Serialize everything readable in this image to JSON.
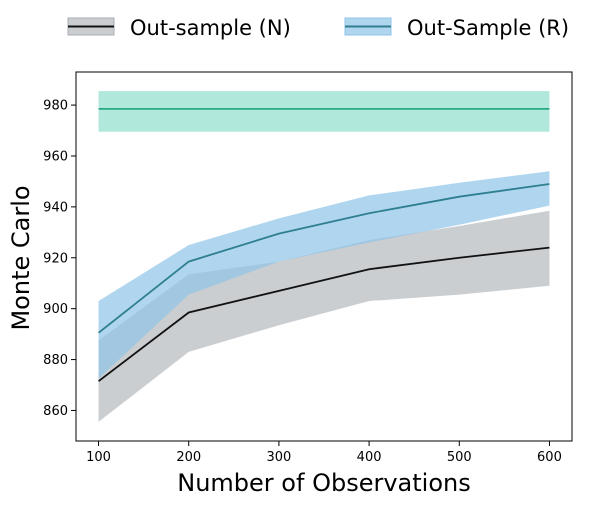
{
  "chart_data": {
    "type": "line",
    "xlabel": "Number of Observations",
    "ylabel": "Monte Carlo",
    "xlim": [
      75,
      625
    ],
    "ylim": [
      848,
      993
    ],
    "xticks": [
      100,
      200,
      300,
      400,
      500,
      600
    ],
    "yticks": [
      860,
      880,
      900,
      920,
      940,
      960,
      980
    ],
    "legend_position": "top-center outside",
    "grid": false,
    "series": [
      {
        "name": "Out-sample (N)",
        "color": "#111111",
        "band_color": "#a9aeb3",
        "x": [
          100,
          200,
          300,
          400,
          500,
          600
        ],
        "y": [
          871.5,
          898.5,
          907,
          915.5,
          920,
          924
        ],
        "lower": [
          855.5,
          883,
          893.5,
          903,
          905.5,
          909
        ],
        "upper": [
          887.5,
          913.5,
          918.5,
          927,
          932.5,
          938.5
        ]
      },
      {
        "name": "Out-Sample (R)",
        "color": "#2e7f90",
        "band_color": "#8fc4e8",
        "x": [
          100,
          200,
          300,
          400,
          500,
          600
        ],
        "y": [
          890.5,
          918.5,
          929.5,
          937.5,
          944,
          949
        ],
        "lower": [
          872.5,
          905.5,
          918.5,
          926,
          933,
          940.5
        ],
        "upper": [
          903,
          925,
          935.5,
          944.5,
          949.5,
          954
        ]
      },
      {
        "name": "",
        "color": "#2aa88a",
        "band_color": "#6fd6bf",
        "x": [
          100,
          600
        ],
        "y": [
          978.5,
          978.5
        ],
        "lower": [
          969.5,
          969.5
        ],
        "upper": [
          985.5,
          985.5
        ]
      }
    ]
  }
}
